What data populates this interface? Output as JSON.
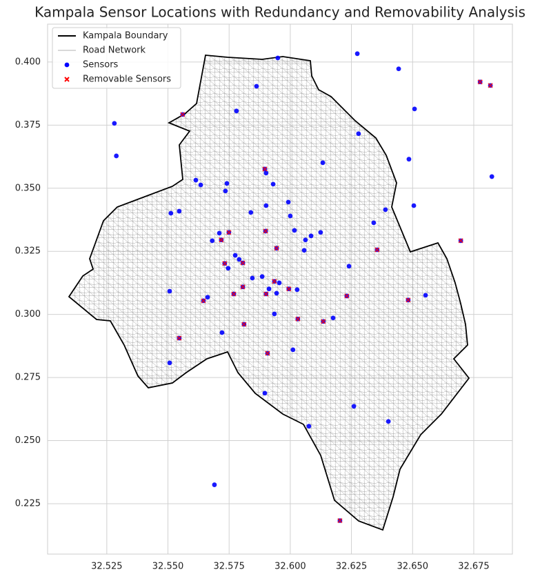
{
  "chart_data": {
    "type": "scatter",
    "title": "Kampala Sensor Locations with Redundancy and Removability Analysis",
    "xlim": [
      32.5008,
      32.6908
    ],
    "ylim": [
      0.20504,
      0.415
    ],
    "xticks": [
      32.525,
      {
        "value": 32.55,
        "label": "32.550"
      },
      32.575,
      {
        "value": 32.6,
        "label": "32.600"
      },
      32.625,
      {
        "value": 32.65,
        "label": "32.650"
      },
      32.675
    ],
    "yticks": [
      0.225,
      {
        "value": 0.25,
        "label": "0.250"
      },
      0.275,
      {
        "value": 0.3,
        "label": "0.300"
      },
      0.325,
      {
        "value": 0.35,
        "label": "0.350"
      },
      0.375,
      {
        "value": 0.4,
        "label": "0.400"
      }
    ],
    "grid": true,
    "legend": "upper left",
    "layers": [
      {
        "name": "Kampala Boundary",
        "color": "#000000"
      },
      {
        "name": "Road Network",
        "color": "#999999"
      }
    ],
    "series": [
      {
        "name": "Sensors",
        "color": "#0000ff",
        "marker": "circle",
        "x": [
          32.5949,
          32.6274,
          32.6443,
          32.6776,
          32.6818,
          32.5281,
          32.556,
          32.5862,
          32.578,
          32.6508,
          32.5289,
          32.6279,
          32.6485,
          32.6824,
          32.6133,
          32.5896,
          32.5901,
          32.5614,
          32.5634,
          32.5741,
          32.593,
          32.5735,
          32.6505,
          32.6389,
          32.5512,
          32.5546,
          32.5839,
          32.5901,
          32.5992,
          32.6,
          32.6017,
          32.6124,
          32.6085,
          32.6062,
          32.5899,
          32.5749,
          32.571,
          32.5681,
          32.5718,
          32.6341,
          32.6697,
          32.6355,
          32.5944,
          32.6057,
          32.5775,
          32.5791,
          32.5732,
          32.5806,
          32.5746,
          32.624,
          32.5885,
          32.5845,
          32.5935,
          32.5955,
          32.5913,
          32.6028,
          32.5994,
          32.5806,
          32.5769,
          32.5944,
          32.5901,
          32.5507,
          32.5662,
          32.5645,
          32.6553,
          32.6231,
          32.6482,
          32.5935,
          32.6031,
          32.6135,
          32.6175,
          32.5811,
          32.5721,
          32.5546,
          32.6011,
          32.5907,
          32.5507,
          32.5896,
          32.626,
          32.6401,
          32.6076,
          32.569,
          32.6203
        ],
        "values": [
          0.4016,
          0.4033,
          0.3973,
          0.3921,
          0.3907,
          0.3757,
          0.3792,
          0.3904,
          0.3806,
          0.3814,
          0.3628,
          0.3716,
          0.3615,
          0.3546,
          0.3601,
          0.3576,
          0.356,
          0.3532,
          0.3513,
          0.3519,
          0.3516,
          0.3489,
          0.3431,
          0.3415,
          0.3401,
          0.3409,
          0.3404,
          0.3431,
          0.3445,
          0.339,
          0.3333,
          0.3325,
          0.3311,
          0.3295,
          0.333,
          0.3325,
          0.3322,
          0.3292,
          0.3295,
          0.3363,
          0.3292,
          0.3256,
          0.3262,
          0.3254,
          0.3234,
          0.3218,
          0.3202,
          0.3204,
          0.3183,
          0.3191,
          0.315,
          0.3144,
          0.3131,
          0.3125,
          0.3101,
          0.3098,
          0.3101,
          0.3109,
          0.3081,
          0.3084,
          0.3081,
          0.3092,
          0.3068,
          0.3054,
          0.3076,
          0.3073,
          0.3057,
          0.3002,
          0.2982,
          0.2972,
          0.2986,
          0.2961,
          0.2928,
          0.2906,
          0.286,
          0.2846,
          0.2808,
          0.2688,
          0.2636,
          0.2576,
          0.2557,
          0.2325,
          0.2183
        ]
      },
      {
        "name": "Removable Sensors",
        "color": "#ff0000",
        "marker": "x",
        "x": [
          32.556,
          32.6776,
          32.6818,
          32.5896,
          32.5899,
          32.5749,
          32.5718,
          32.6355,
          32.6697,
          32.5732,
          32.5806,
          32.5944,
          32.5769,
          32.5806,
          32.5901,
          32.5994,
          32.5935,
          32.5645,
          32.6231,
          32.6482,
          32.6031,
          32.6135,
          32.5811,
          32.5546,
          32.5907,
          32.6203
        ],
        "values": [
          0.3792,
          0.3921,
          0.3907,
          0.3576,
          0.333,
          0.3325,
          0.3295,
          0.3256,
          0.3292,
          0.3202,
          0.3204,
          0.3262,
          0.3081,
          0.3109,
          0.3081,
          0.3101,
          0.3131,
          0.3054,
          0.3073,
          0.3057,
          0.2982,
          0.2972,
          0.2961,
          0.2906,
          0.2846,
          0.2183
        ]
      }
    ]
  }
}
